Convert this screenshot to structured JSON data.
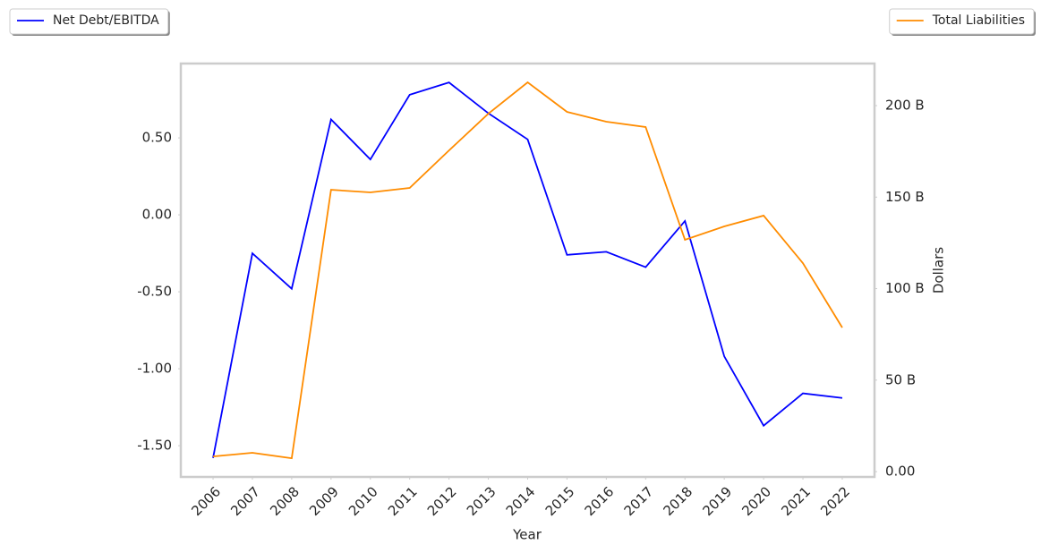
{
  "chart_data": {
    "type": "line",
    "x_label": "Year",
    "y2_label": "Dollars",
    "x": [
      2006,
      2007,
      2008,
      2009,
      2010,
      2011,
      2012,
      2013,
      2014,
      2015,
      2016,
      2017,
      2018,
      2019,
      2020,
      2021,
      2022
    ],
    "xlim": [
      2005.18,
      2022.82
    ],
    "xticks": [
      2006,
      2007,
      2008,
      2009,
      2010,
      2011,
      2012,
      2013,
      2014,
      2015,
      2016,
      2017,
      2018,
      2019,
      2020,
      2021,
      2022
    ],
    "ylim": [
      -1.703,
      0.983
    ],
    "yticks": [
      {
        "value": 0.5,
        "label": "0.50"
      },
      {
        "value": 0,
        "label": "0.00"
      },
      {
        "value": -0.5,
        "label": "-0.50"
      },
      {
        "value": -1,
        "label": "-1.00"
      },
      {
        "value": -1.5,
        "label": "-1.50"
      }
    ],
    "y2lim": [
      -2900000000,
      223000000000
    ],
    "y2ticks": [
      {
        "value": 0,
        "label": "0.00"
      },
      {
        "value": 50000000000,
        "label": "50 B"
      },
      {
        "value": 100000000000,
        "label": "100 B"
      },
      {
        "value": 150000000000,
        "label": "150 B"
      },
      {
        "value": 200000000000,
        "label": "200 B"
      }
    ],
    "series": [
      {
        "name": "Net Debt/EBITDA",
        "color": "#0000ff",
        "axis": "y",
        "values": [
          -1.58,
          -0.25,
          -0.48,
          0.62,
          0.36,
          0.78,
          0.86,
          0.66,
          0.49,
          -0.26,
          -0.24,
          -0.34,
          -0.04,
          -0.92,
          -1.37,
          -1.16,
          -1.19
        ]
      },
      {
        "name": "Total Liabilities",
        "color": "#ff8c00",
        "axis": "y2",
        "values": [
          8300000000,
          10300000000,
          7300000000,
          154000000000,
          152600000000,
          155000000000,
          175500000000,
          195600000000,
          212700000000,
          196600000000,
          191200000000,
          188300000000,
          126700000000,
          134000000000,
          139900000000,
          113900000000,
          78700000000
        ]
      }
    ]
  }
}
